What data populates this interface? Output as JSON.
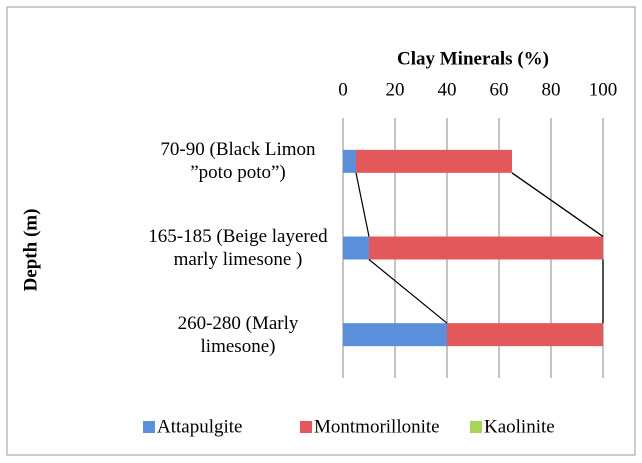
{
  "chart_data": {
    "type": "stacked-barh",
    "title": "Clay Minerals (%)",
    "ylabel": "Depth (m)",
    "categories": [
      "70-90 (Black Limon ”poto poto”)",
      "165-185 (Beige layered marly limesone )",
      "260-280 (Marly limesone)"
    ],
    "series": [
      {
        "name": "Attapulgite",
        "color": "#5b8fd9",
        "values": [
          5,
          10,
          40
        ]
      },
      {
        "name": "Montmorillonite",
        "color": "#e3585a",
        "values": [
          60,
          90,
          60
        ]
      },
      {
        "name": "Kaolinite",
        "color": "#a8d45a",
        "values": [
          0,
          0,
          0
        ]
      }
    ],
    "xlim": [
      0,
      100
    ],
    "xticks": [
      0,
      20,
      40,
      60,
      80,
      100
    ],
    "grid": true,
    "legend": "bottom"
  }
}
